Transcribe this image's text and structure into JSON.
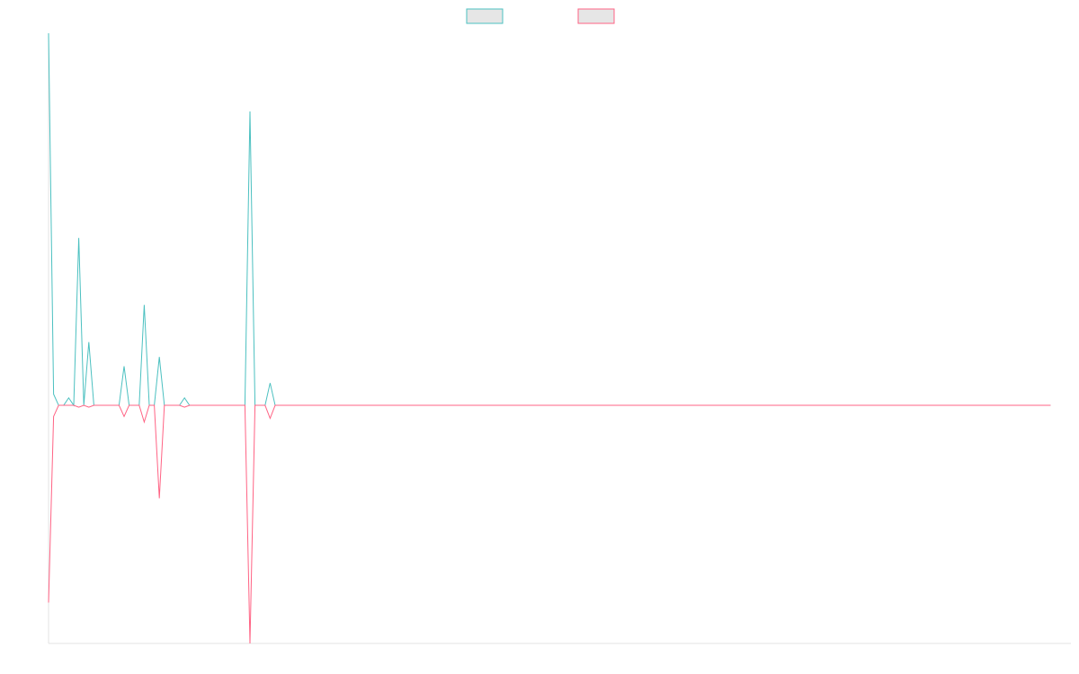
{
  "chart_data": {
    "type": "line",
    "title": "",
    "xlabel": "",
    "ylabel": "",
    "grid": false,
    "legend_position": "top-center",
    "ylim": [
      -0.64,
      1.0
    ],
    "x_count": 200,
    "series": [
      {
        "name": "",
        "color": "#4bc0c0",
        "points": [
          [
            0,
            1.0
          ],
          [
            1,
            0.03
          ],
          [
            2,
            0.0
          ],
          [
            3,
            0.0
          ],
          [
            4,
            0.02
          ],
          [
            5,
            0.0
          ],
          [
            6,
            0.45
          ],
          [
            7,
            0.0
          ],
          [
            8,
            0.17
          ],
          [
            9,
            0.0
          ],
          [
            10,
            0.0
          ],
          [
            14,
            0.0
          ],
          [
            15,
            0.105
          ],
          [
            16,
            0.0
          ],
          [
            17,
            0.0
          ],
          [
            18,
            0.0
          ],
          [
            19,
            0.27
          ],
          [
            20,
            0.0
          ],
          [
            21,
            0.0
          ],
          [
            22,
            0.13
          ],
          [
            23,
            0.0
          ],
          [
            24,
            0.0
          ],
          [
            25,
            0.0
          ],
          [
            26,
            0.0
          ],
          [
            27,
            0.02
          ],
          [
            28,
            0.0
          ],
          [
            29,
            0.0
          ],
          [
            38,
            0.0
          ],
          [
            39,
            0.0
          ],
          [
            40,
            0.79
          ],
          [
            41,
            0.0
          ],
          [
            42,
            0.0
          ],
          [
            43,
            0.0
          ],
          [
            44,
            0.06
          ],
          [
            45,
            0.0
          ],
          [
            199,
            0.0
          ]
        ]
      },
      {
        "name": "",
        "color": "#ff6384",
        "points": [
          [
            0,
            -0.53
          ],
          [
            1,
            -0.03
          ],
          [
            2,
            0.0
          ],
          [
            3,
            0.0
          ],
          [
            4,
            0.0
          ],
          [
            5,
            0.0
          ],
          [
            6,
            -0.005
          ],
          [
            7,
            0.0
          ],
          [
            8,
            -0.005
          ],
          [
            9,
            0.0
          ],
          [
            10,
            0.0
          ],
          [
            14,
            0.0
          ],
          [
            15,
            -0.03
          ],
          [
            16,
            0.0
          ],
          [
            17,
            0.0
          ],
          [
            18,
            0.0
          ],
          [
            19,
            -0.045
          ],
          [
            20,
            0.0
          ],
          [
            21,
            0.0
          ],
          [
            22,
            -0.25
          ],
          [
            23,
            0.0
          ],
          [
            24,
            0.0
          ],
          [
            25,
            0.0
          ],
          [
            26,
            0.0
          ],
          [
            27,
            -0.005
          ],
          [
            28,
            0.0
          ],
          [
            29,
            0.0
          ],
          [
            38,
            0.0
          ],
          [
            39,
            0.0
          ],
          [
            40,
            -0.64
          ],
          [
            41,
            0.0
          ],
          [
            42,
            0.0
          ],
          [
            43,
            0.0
          ],
          [
            44,
            -0.035
          ],
          [
            45,
            0.0
          ],
          [
            199,
            0.0
          ]
        ]
      }
    ]
  }
}
